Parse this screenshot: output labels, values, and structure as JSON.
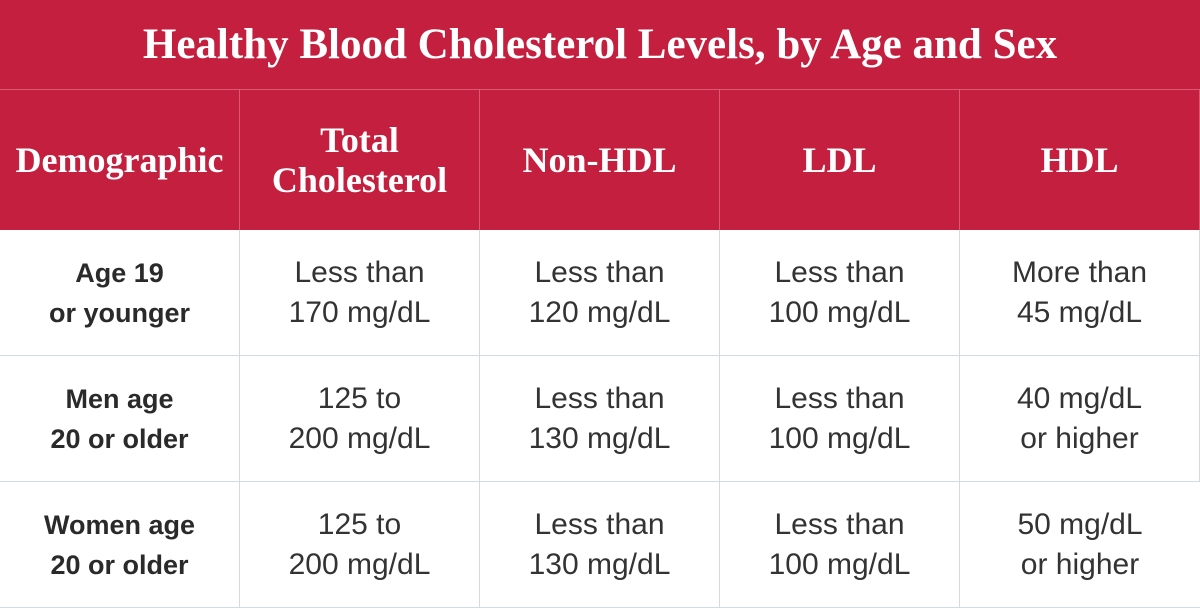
{
  "title": "Healthy Blood Cholesterol Levels, by Age and Sex",
  "table": {
    "header": [
      [
        "Demographic"
      ],
      [
        "Total",
        "Cholesterol"
      ],
      [
        "Non-HDL"
      ],
      [
        "LDL"
      ],
      [
        "HDL"
      ]
    ],
    "rows": [
      [
        [
          "Age 19",
          "or younger"
        ],
        [
          "Less than",
          "170 mg/dL"
        ],
        [
          "Less than",
          "120 mg/dL"
        ],
        [
          "Less than",
          "100 mg/dL"
        ],
        [
          "More than",
          "45 mg/dL"
        ]
      ],
      [
        [
          "Men age",
          "20 or older"
        ],
        [
          "125 to",
          "200 mg/dL"
        ],
        [
          "Less than",
          "130 mg/dL"
        ],
        [
          "Less than",
          "100 mg/dL"
        ],
        [
          "40 mg/dL",
          "or higher"
        ]
      ],
      [
        [
          "Women age",
          "20 or older"
        ],
        [
          "125 to",
          "200 mg/dL"
        ],
        [
          "Less than",
          "130 mg/dL"
        ],
        [
          "Less than",
          "100 mg/dL"
        ],
        [
          "50 mg/dL",
          "or higher"
        ]
      ]
    ]
  }
}
